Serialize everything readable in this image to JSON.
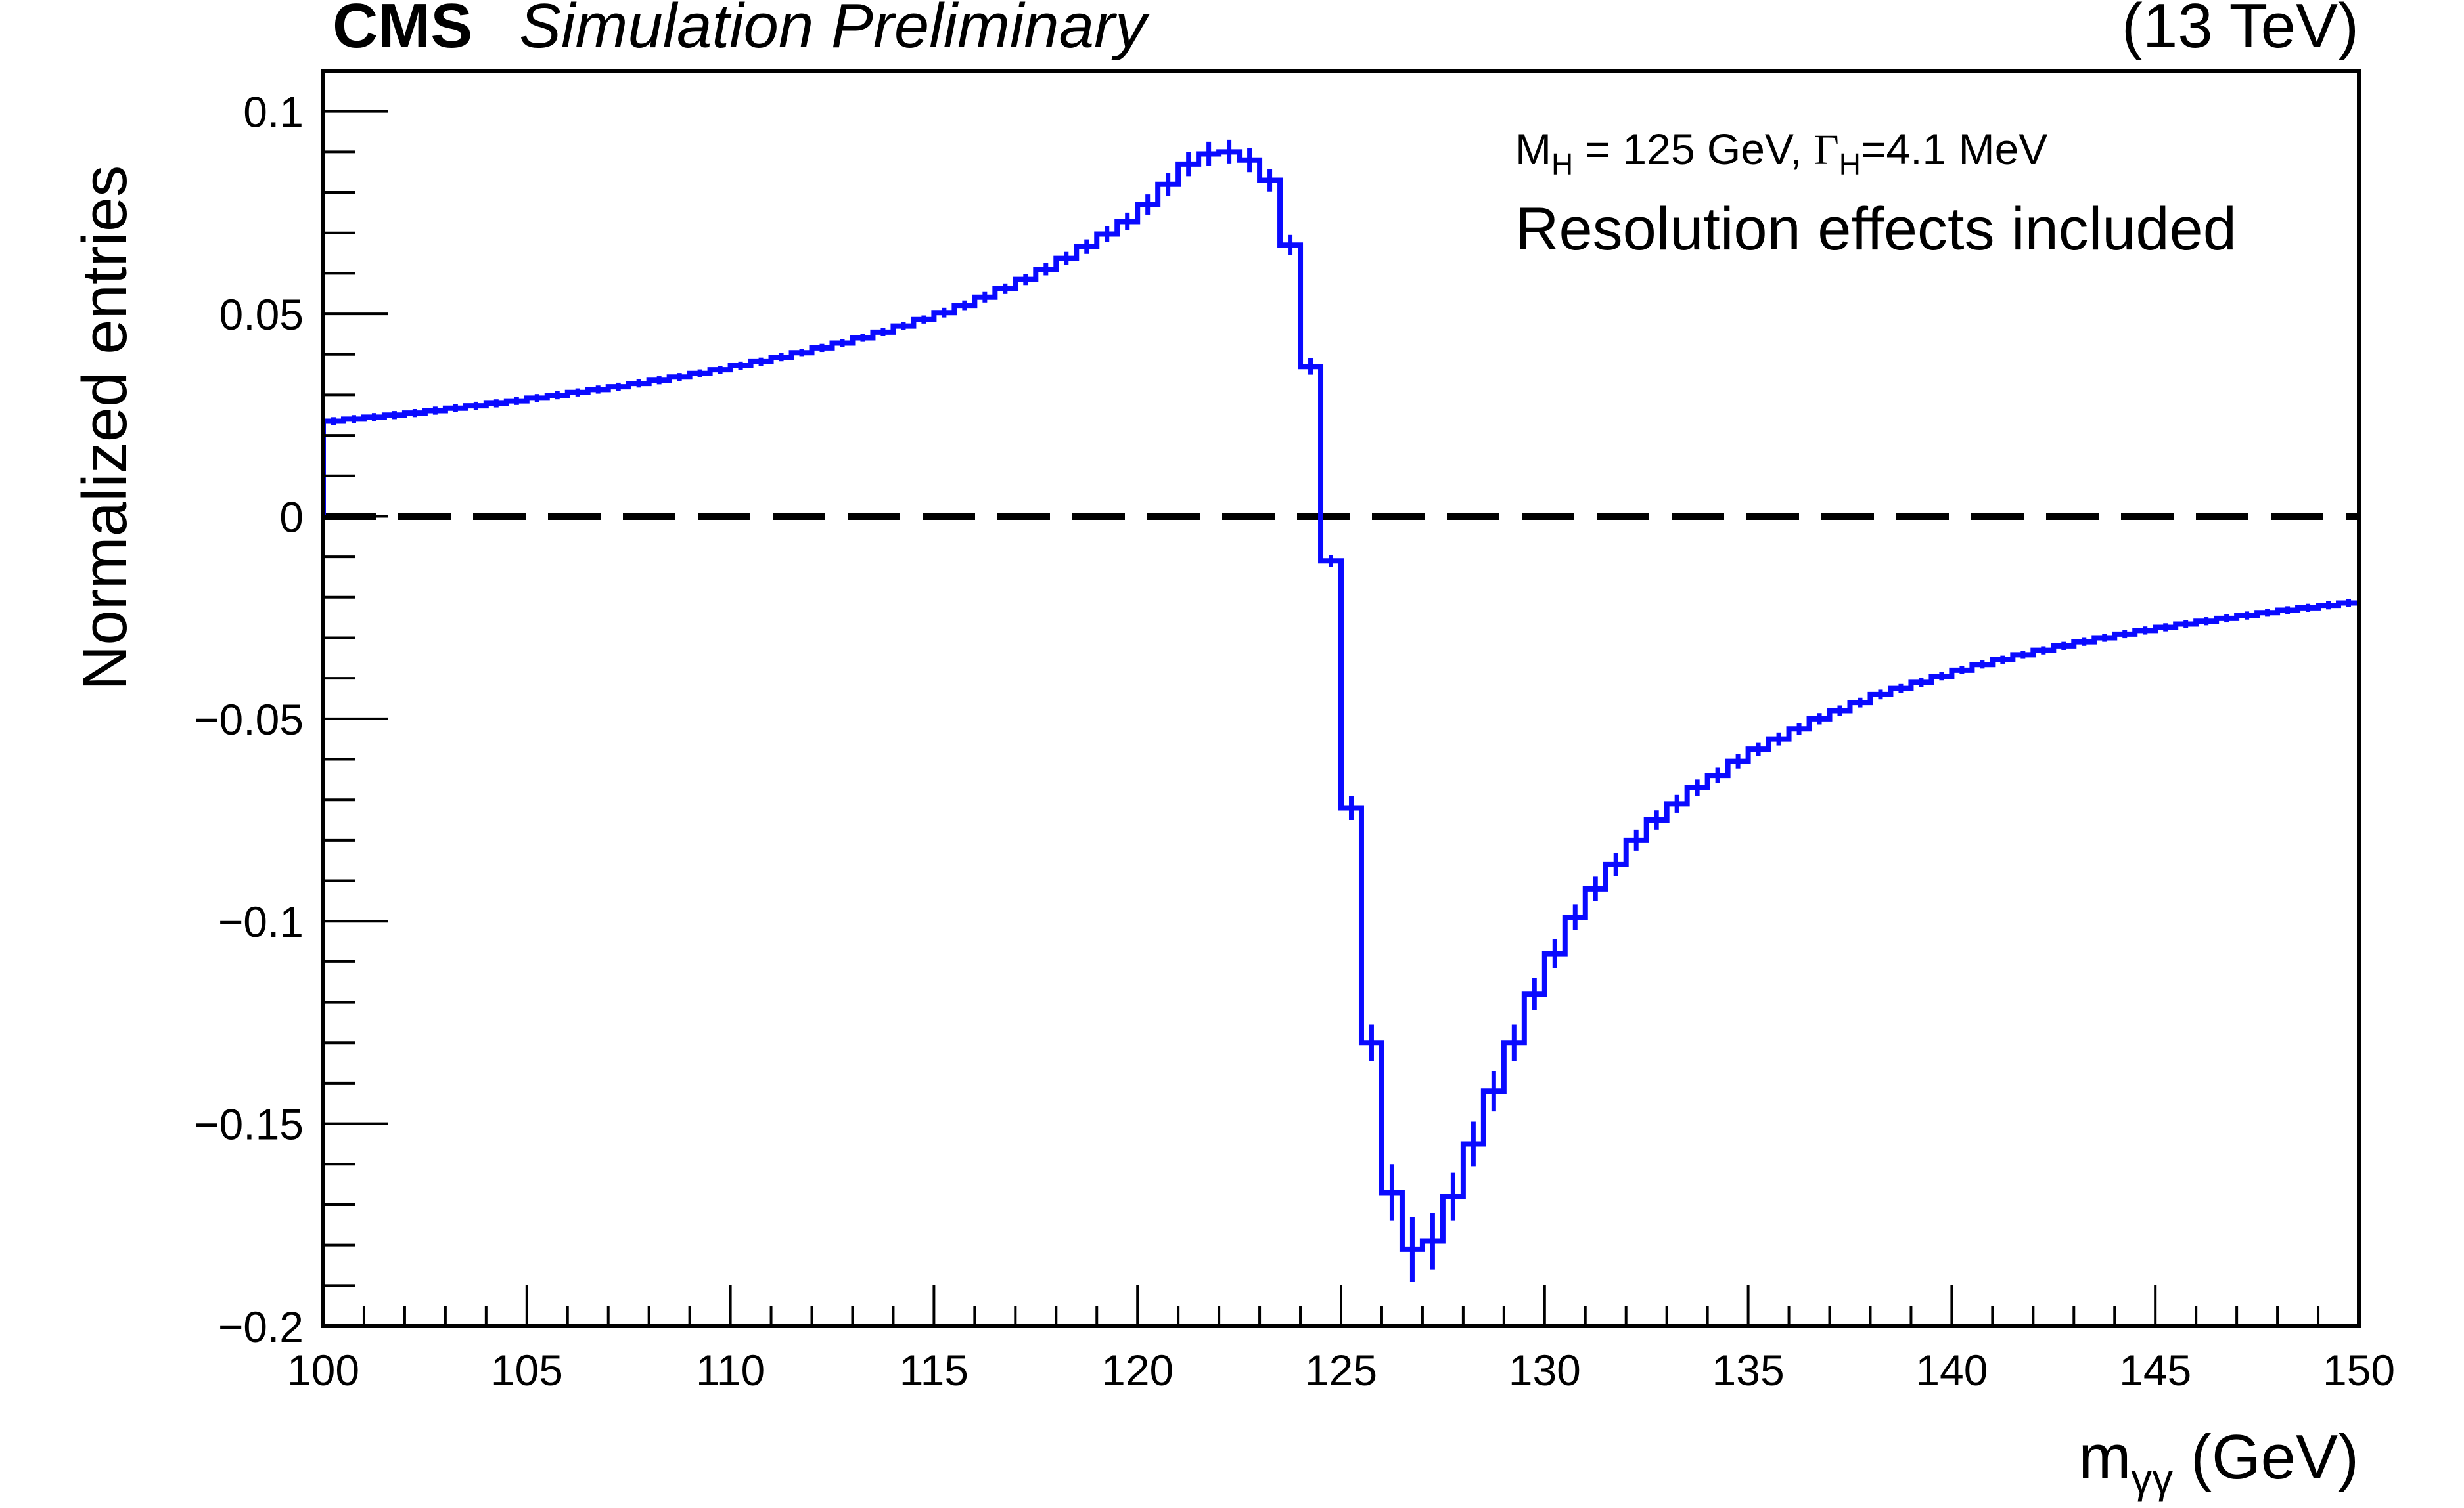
{
  "header": {
    "experiment": "CMS",
    "status": "Simulation Preliminary",
    "energy": "(13 TeV)"
  },
  "annotations": {
    "mass_label": "M",
    "mass_sub": "H",
    "mass_value": " = 125 GeV, ",
    "width_label": "Γ",
    "width_sub": "H",
    "width_value": "=4.1 MeV",
    "resolution_note": "Resolution effects included"
  },
  "colors": {
    "series": "#0a0aff",
    "reference_line": "#000000",
    "axis": "#000000",
    "background": "#ffffff"
  },
  "chart_data": {
    "type": "line",
    "style": "step histogram with error bars",
    "title": "",
    "xlabel_main": "m",
    "xlabel_sub": "γγ",
    "xlabel_unit": " (GeV)",
    "ylabel": "Normalized entries",
    "xlim": [
      100,
      150
    ],
    "ylim": [
      -0.2,
      0.11
    ],
    "x_ticks": [
      "100",
      "105",
      "110",
      "115",
      "120",
      "125",
      "130",
      "135",
      "140",
      "145",
      "150"
    ],
    "y_ticks": [
      "0.1",
      "0.05",
      "0",
      "−0.05",
      "−0.1",
      "−0.15",
      "−0.2"
    ],
    "y_tick_values": [
      0.1,
      0.05,
      0,
      -0.05,
      -0.1,
      -0.15,
      -0.2
    ],
    "reference_line": {
      "y": 0,
      "style": "dashed"
    },
    "bin_width": 0.5,
    "series": [
      {
        "bin_low_edges": [
          100.0,
          100.5,
          101.0,
          101.5,
          102.0,
          102.5,
          103.0,
          103.5,
          104.0,
          104.5,
          105.0,
          105.5,
          106.0,
          106.5,
          107.0,
          107.5,
          108.0,
          108.5,
          109.0,
          109.5,
          110.0,
          110.5,
          111.0,
          111.5,
          112.0,
          112.5,
          113.0,
          113.5,
          114.0,
          114.5,
          115.0,
          115.5,
          116.0,
          116.5,
          117.0,
          117.5,
          118.0,
          118.5,
          119.0,
          119.5,
          120.0,
          120.5,
          121.0,
          121.5,
          122.0,
          122.5,
          123.0,
          123.5,
          124.0,
          124.5,
          125.0,
          125.5,
          126.0,
          126.5,
          127.0,
          127.5,
          128.0,
          128.5,
          129.0,
          129.5,
          130.0,
          130.5,
          131.0,
          131.5,
          132.0,
          132.5,
          133.0,
          133.5,
          134.0,
          134.5,
          135.0,
          135.5,
          136.0,
          136.5,
          137.0,
          137.5,
          138.0,
          138.5,
          139.0,
          139.5,
          140.0,
          140.5,
          141.0,
          141.5,
          142.0,
          142.5,
          143.0,
          143.5,
          144.0,
          144.5,
          145.0,
          145.5,
          146.0,
          146.5,
          147.0,
          147.5,
          148.0,
          148.5,
          149.0,
          149.5
        ],
        "values": [
          0.0235,
          0.024,
          0.0245,
          0.025,
          0.0255,
          0.0261,
          0.0267,
          0.0273,
          0.0279,
          0.0285,
          0.0292,
          0.0299,
          0.0306,
          0.0313,
          0.032,
          0.0328,
          0.0336,
          0.0344,
          0.0353,
          0.0362,
          0.0372,
          0.0382,
          0.0393,
          0.0404,
          0.0416,
          0.0428,
          0.0441,
          0.0455,
          0.047,
          0.0486,
          0.0503,
          0.0521,
          0.0541,
          0.0562,
          0.0585,
          0.061,
          0.0637,
          0.0666,
          0.0697,
          0.0728,
          0.077,
          0.082,
          0.087,
          0.0895,
          0.09,
          0.088,
          0.083,
          0.067,
          0.037,
          -0.011,
          -0.072,
          -0.13,
          -0.167,
          -0.181,
          -0.179,
          -0.168,
          -0.155,
          -0.142,
          -0.13,
          -0.118,
          -0.108,
          -0.099,
          -0.092,
          -0.086,
          -0.08,
          -0.075,
          -0.071,
          -0.067,
          -0.064,
          -0.0605,
          -0.0575,
          -0.055,
          -0.0525,
          -0.05,
          -0.048,
          -0.046,
          -0.044,
          -0.0425,
          -0.041,
          -0.0395,
          -0.038,
          -0.0366,
          -0.0354,
          -0.0342,
          -0.0331,
          -0.032,
          -0.031,
          -0.03,
          -0.0291,
          -0.0282,
          -0.0274,
          -0.0266,
          -0.0259,
          -0.0252,
          -0.0245,
          -0.0238,
          -0.0232,
          -0.0226,
          -0.022,
          -0.0214
        ],
        "errors": [
          0.001,
          0.001,
          0.001,
          0.001,
          0.001,
          0.001,
          0.001,
          0.001,
          0.001,
          0.001,
          0.001,
          0.001,
          0.001,
          0.001,
          0.001,
          0.001,
          0.001,
          0.001,
          0.001,
          0.001,
          0.001,
          0.001,
          0.001,
          0.001,
          0.001,
          0.001,
          0.001,
          0.001,
          0.001,
          0.001,
          0.0012,
          0.0012,
          0.0013,
          0.0013,
          0.0014,
          0.0015,
          0.0016,
          0.0018,
          0.002,
          0.0022,
          0.0025,
          0.0028,
          0.003,
          0.003,
          0.003,
          0.003,
          0.0028,
          0.0025,
          0.002,
          0.0015,
          0.003,
          0.0045,
          0.007,
          0.008,
          0.007,
          0.006,
          0.0055,
          0.005,
          0.0045,
          0.004,
          0.0035,
          0.0032,
          0.003,
          0.0028,
          0.0026,
          0.0024,
          0.0022,
          0.002,
          0.0019,
          0.0018,
          0.0017,
          0.0016,
          0.0015,
          0.0014,
          0.0013,
          0.0012,
          0.0012,
          0.0011,
          0.0011,
          0.001,
          0.001,
          0.001,
          0.001,
          0.001,
          0.001,
          0.001,
          0.001,
          0.001,
          0.001,
          0.001,
          0.001,
          0.001,
          0.001,
          0.001,
          0.001,
          0.001,
          0.001,
          0.001,
          0.001,
          0.001
        ]
      }
    ]
  }
}
